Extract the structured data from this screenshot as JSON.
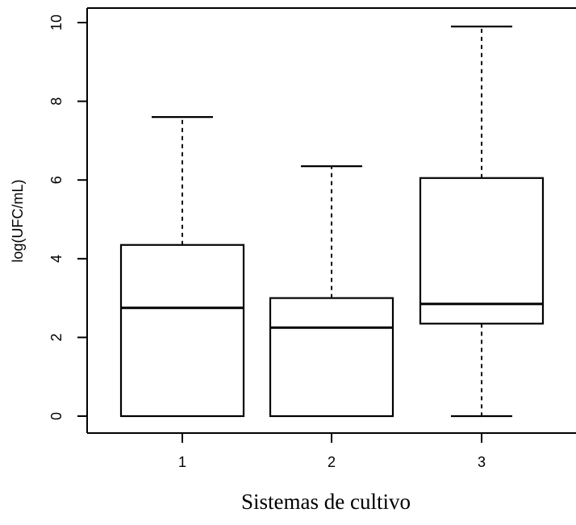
{
  "chart_data": {
    "type": "boxplot",
    "title": "",
    "xlabel": "Sistemas de cultivo",
    "ylabel": "log(UFC/mL)",
    "ylim": [
      0,
      10
    ],
    "y_ticks": [
      0,
      2,
      4,
      6,
      8,
      10
    ],
    "categories": [
      "1",
      "2",
      "3"
    ],
    "boxes": [
      {
        "label": "1",
        "min": 0,
        "q1": 0,
        "median": 2.75,
        "q3": 4.35,
        "max": 7.6
      },
      {
        "label": "2",
        "min": 0,
        "q1": 0,
        "median": 2.25,
        "q3": 3.0,
        "max": 6.35
      },
      {
        "label": "3",
        "min": 0,
        "q1": 2.35,
        "median": 2.85,
        "q3": 6.05,
        "max": 9.9
      }
    ],
    "grid": false
  }
}
